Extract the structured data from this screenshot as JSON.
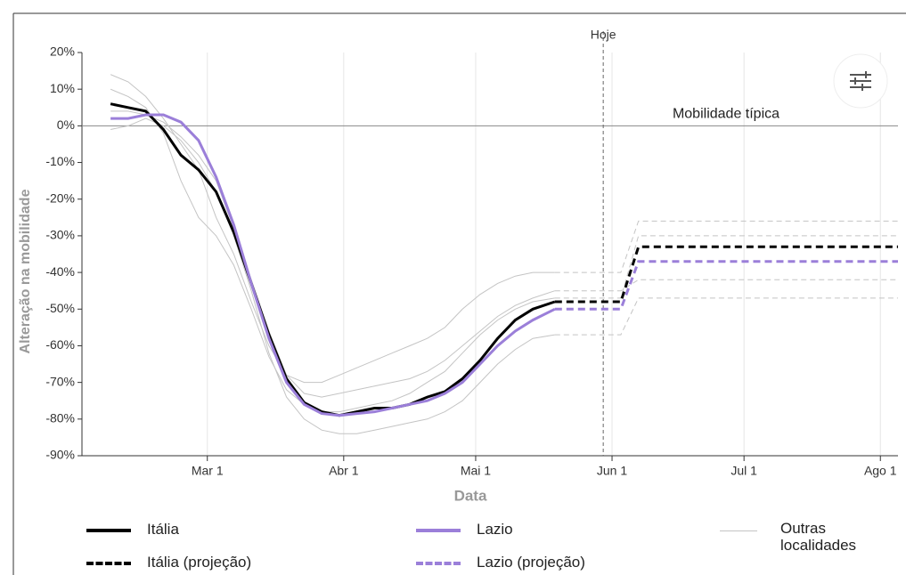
{
  "chart_data": {
    "type": "line",
    "y_label": "Alteração na mobilidade",
    "x_label": "Data",
    "xlim": [
      -28.5,
      157
    ],
    "xticks": [
      {
        "value": 0,
        "label": "Mar 1"
      },
      {
        "value": 31,
        "label": "Abr 1"
      },
      {
        "value": 61,
        "label": "Mai 1"
      },
      {
        "value": 92,
        "label": "Jun 1"
      },
      {
        "value": 122,
        "label": "Jul 1"
      },
      {
        "value": 153,
        "label": "Ago 1"
      }
    ],
    "ylim": [
      -90,
      20
    ],
    "yticks": [
      {
        "value": -90,
        "label": "-90%"
      },
      {
        "value": -80,
        "label": "-80%"
      },
      {
        "value": -70,
        "label": "-70%"
      },
      {
        "value": -60,
        "label": "-60%"
      },
      {
        "value": -50,
        "label": "-50%"
      },
      {
        "value": -40,
        "label": "-40%"
      },
      {
        "value": -30,
        "label": "-30%"
      },
      {
        "value": -20,
        "label": "-20%"
      },
      {
        "value": -10,
        "label": "-10%"
      },
      {
        "value": 0,
        "label": "0%"
      },
      {
        "value": 10,
        "label": "10%"
      },
      {
        "value": 20,
        "label": "20%"
      }
    ],
    "grid": true,
    "reference_line": {
      "value": 0,
      "label": "Mobilidade típica"
    },
    "today": {
      "value": 90,
      "label": "Hoje"
    },
    "series": [
      {
        "name": "Itália",
        "color": "#000000",
        "dashed": false,
        "x": [
          -22,
          -18,
          -14,
          -10,
          -6,
          -2,
          2,
          6,
          10,
          14,
          18,
          22,
          26,
          30,
          34,
          38,
          42,
          46,
          50,
          54,
          58,
          62,
          66,
          70,
          74,
          79
        ],
        "values": [
          6,
          5,
          4,
          -1,
          -8,
          -12,
          -18,
          -29,
          -43,
          -57,
          -69,
          -75.5,
          -78,
          -79,
          -78,
          -77,
          -77,
          -76,
          -74,
          -72.5,
          -69,
          -64,
          -58,
          -53,
          -50,
          -48
        ]
      },
      {
        "name": "Lazio",
        "color": "#9b7fd9",
        "dashed": false,
        "x": [
          -22,
          -18,
          -14,
          -10,
          -6,
          -2,
          2,
          6,
          10,
          14,
          18,
          22,
          26,
          30,
          34,
          38,
          42,
          46,
          50,
          54,
          58,
          62,
          66,
          70,
          74,
          79
        ],
        "values": [
          2,
          2,
          3,
          3,
          1,
          -4,
          -14,
          -27,
          -43,
          -58,
          -70,
          -76,
          -78.5,
          -79,
          -78.5,
          -78,
          -77,
          -76,
          -75,
          -73,
          -70,
          -65,
          -60,
          -56,
          -53,
          -50
        ]
      },
      {
        "name": "Itália (projeção)",
        "color": "#000000",
        "dashed": true,
        "x": [
          79,
          94,
          98,
          157
        ],
        "values": [
          -48,
          -48,
          -33,
          -33
        ]
      },
      {
        "name": "Lazio (projeção)",
        "color": "#9b7fd9",
        "dashed": true,
        "x": [
          79,
          94,
          98,
          157
        ],
        "values": [
          -50,
          -50,
          -37,
          -37
        ]
      }
    ],
    "others": {
      "name": "Outras localidades",
      "color": "#c4c4c4",
      "x": [
        -22,
        -18,
        -14,
        -10,
        -6,
        -2,
        2,
        6,
        10,
        14,
        18,
        22,
        26,
        30,
        34,
        38,
        42,
        46,
        50,
        54,
        58,
        62,
        66,
        70,
        74,
        79
      ],
      "lines": [
        [
          14,
          12,
          8,
          2,
          -5,
          -12,
          -25,
          -35,
          -48,
          -60,
          -68,
          -70,
          -70,
          -68,
          -66,
          -64,
          -62,
          -60,
          -58,
          -55,
          -50,
          -46,
          -43,
          -41,
          -40,
          -40
        ],
        [
          -1,
          0,
          2,
          0,
          -4,
          -10,
          -18,
          -30,
          -45,
          -62,
          -74,
          -80,
          -83,
          -84,
          -84,
          -83,
          -82,
          -81,
          -80,
          -78,
          -75,
          -70,
          -65,
          -61,
          -58,
          -57
        ],
        [
          10,
          8,
          5,
          -2,
          -15,
          -25,
          -30,
          -38,
          -50,
          -63,
          -72,
          -76,
          -78,
          -78,
          -77,
          -76,
          -75,
          -73,
          -70,
          -67,
          -62,
          -57,
          -53,
          -50,
          -48,
          -47
        ],
        [
          4,
          4,
          3,
          1,
          -3,
          -8,
          -15,
          -28,
          -42,
          -56,
          -68,
          -73,
          -74,
          -73,
          -72,
          -71,
          -70,
          -69,
          -67,
          -64,
          -60,
          -56,
          -52,
          -49,
          -47,
          -45
        ]
      ],
      "projection_x": [
        79,
        94,
        98,
        157
      ],
      "projection_lines": [
        [
          -40,
          -40,
          -26,
          -26
        ],
        [
          -57,
          -57,
          -47,
          -47
        ],
        [
          -47,
          -47,
          -30,
          -30
        ],
        [
          -45,
          -45,
          -42,
          -42
        ]
      ]
    }
  }
}
